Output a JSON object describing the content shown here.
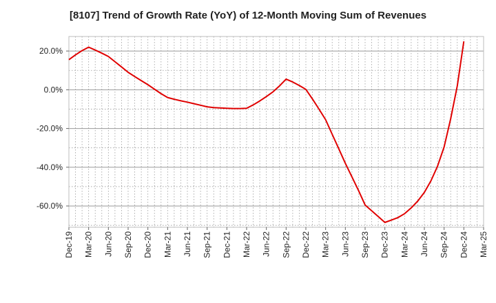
{
  "chart_data": {
    "type": "line",
    "title": "[8107]  Trend of Growth Rate (YoY) of 12-Month Moving Sum of Revenues",
    "xlabel": "",
    "ylabel": "",
    "x_tick_labels": [
      "Dec-19",
      "Mar-20",
      "Jun-20",
      "Sep-20",
      "Dec-20",
      "Mar-21",
      "Jun-21",
      "Sep-21",
      "Dec-21",
      "Mar-22",
      "Jun-22",
      "Sep-22",
      "Dec-22",
      "Mar-23",
      "Jun-23",
      "Sep-23",
      "Dec-23",
      "Mar-24",
      "Jun-24",
      "Sep-24",
      "Dec-24",
      "Mar-25"
    ],
    "y_tick_labels": [
      "20.0%",
      "0.0%",
      "-20.0%",
      "-40.0%",
      "-60.0%"
    ],
    "y_tick_values": [
      20,
      0,
      -20,
      -40,
      -60
    ],
    "ylim": [
      -71,
      27.5
    ],
    "x_range_months": [
      "2019-12",
      "2025-03"
    ],
    "grid": true,
    "line_color": "#e00000",
    "series": [
      {
        "points": [
          [
            "2019-12",
            15.5
          ],
          [
            "2020-01",
            18.0
          ],
          [
            "2020-02",
            20.2
          ],
          [
            "2020-03",
            22.0
          ],
          [
            "2020-04",
            20.5
          ],
          [
            "2020-05",
            18.9
          ],
          [
            "2020-06",
            17.2
          ],
          [
            "2020-07",
            14.5
          ],
          [
            "2020-08",
            11.8
          ],
          [
            "2020-09",
            9.0
          ],
          [
            "2020-10",
            6.8
          ],
          [
            "2020-11",
            4.7
          ],
          [
            "2020-12",
            2.6
          ],
          [
            "2021-01",
            0.3
          ],
          [
            "2021-02",
            -2.0
          ],
          [
            "2021-03",
            -4.0
          ],
          [
            "2021-04",
            -4.9
          ],
          [
            "2021-05",
            -5.7
          ],
          [
            "2021-06",
            -6.4
          ],
          [
            "2021-07",
            -7.2
          ],
          [
            "2021-08",
            -8.0
          ],
          [
            "2021-09",
            -8.8
          ],
          [
            "2021-10",
            -9.2
          ],
          [
            "2021-11",
            -9.4
          ],
          [
            "2021-12",
            -9.6
          ],
          [
            "2022-01",
            -9.7
          ],
          [
            "2022-02",
            -9.7
          ],
          [
            "2022-03",
            -9.6
          ],
          [
            "2022-04",
            -7.8
          ],
          [
            "2022-05",
            -5.8
          ],
          [
            "2022-06",
            -3.5
          ],
          [
            "2022-07",
            -1.1
          ],
          [
            "2022-08",
            2.0
          ],
          [
            "2022-09",
            5.5
          ],
          [
            "2022-10",
            4.0
          ],
          [
            "2022-11",
            2.2
          ],
          [
            "2022-12",
            0.2
          ],
          [
            "2023-01",
            -4.8
          ],
          [
            "2023-02",
            -10.0
          ],
          [
            "2023-03",
            -15.5
          ],
          [
            "2023-04",
            -23.0
          ],
          [
            "2023-05",
            -30.5
          ],
          [
            "2023-06",
            -38.0
          ],
          [
            "2023-07",
            -45.0
          ],
          [
            "2023-08",
            -52.0
          ],
          [
            "2023-09",
            -59.5
          ],
          [
            "2023-10",
            -62.5
          ],
          [
            "2023-11",
            -65.5
          ],
          [
            "2023-12",
            -68.5
          ],
          [
            "2024-01",
            -67.3
          ],
          [
            "2024-02",
            -66.0
          ],
          [
            "2024-03",
            -64.0
          ],
          [
            "2024-04",
            -61.0
          ],
          [
            "2024-05",
            -57.5
          ],
          [
            "2024-06",
            -53.0
          ],
          [
            "2024-07",
            -47.0
          ],
          [
            "2024-08",
            -39.5
          ],
          [
            "2024-09",
            -29.5
          ],
          [
            "2024-10",
            -15.0
          ],
          [
            "2024-11",
            2.0
          ],
          [
            "2024-12",
            25.0
          ]
        ]
      }
    ]
  }
}
